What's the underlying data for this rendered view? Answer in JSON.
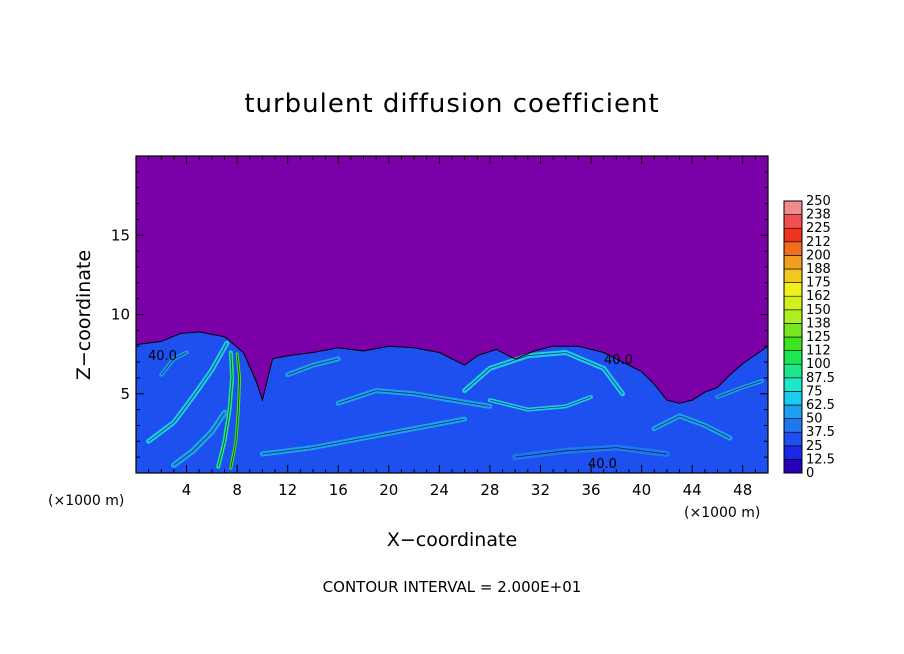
{
  "chart_data": {
    "type": "heatmap",
    "title": "turbulent diffusion coefficient",
    "xlabel": "X−coordinate",
    "ylabel": "Z−coordinate",
    "x_unit": "(×1000 m)",
    "z_unit": "(×1000 m)",
    "xlim": [
      0,
      50
    ],
    "ylim": [
      0,
      20
    ],
    "x_ticks": [
      "4",
      "8",
      "12",
      "16",
      "20",
      "24",
      "28",
      "32",
      "36",
      "40",
      "44",
      "48"
    ],
    "y_ticks": [
      "5",
      "10",
      "15"
    ],
    "colorbar_levels": [
      "0",
      "12.5",
      "25",
      "37.5",
      "50",
      "62.5",
      "75",
      "87.5",
      "100",
      "112",
      "125",
      "138",
      "150",
      "162",
      "175",
      "188",
      "200",
      "212",
      "225",
      "238",
      "250"
    ],
    "colorbar_colors": [
      "#7b00a8",
      "#2800b8",
      "#1c28e6",
      "#1e50f0",
      "#1f78f0",
      "#1ea0f0",
      "#1ecbf0",
      "#1ee6c8",
      "#1ee68c",
      "#1ee650",
      "#3ce61e",
      "#78e61e",
      "#aaf01e",
      "#d2f01e",
      "#f0f01e",
      "#f0c81e",
      "#f0a01e",
      "#f06e1e",
      "#f0321e",
      "#f05050",
      "#f08c8c"
    ],
    "contour_labels": [
      "40.0",
      "40.0",
      "40.0"
    ],
    "annotation": "CONTOUR INTERVAL = 2.000E+01",
    "grid": false,
    "legend": "right colorbar"
  }
}
